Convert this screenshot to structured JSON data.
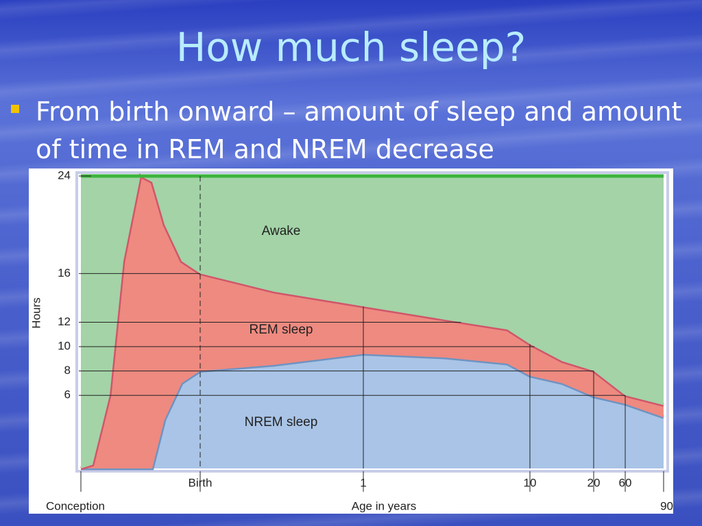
{
  "title": "How much sleep?",
  "bullet": "From birth onward – amount of sleep and amount of time in REM and NREM decrease",
  "chart_data": {
    "type": "area",
    "stacked": true,
    "xlabel": "Age in years",
    "ylabel": "Hours",
    "categories": [
      "Conception",
      null,
      null,
      null,
      null,
      null,
      null,
      null,
      "Birth",
      null,
      "1",
      null,
      null,
      "10",
      null,
      "20",
      "60",
      "90"
    ],
    "series": [
      {
        "name": "NREM sleep",
        "color": "#a9c4e6",
        "edge": "#6f93c2",
        "values": [
          0,
          0,
          0,
          0,
          0,
          0,
          4,
          7,
          8,
          8.5,
          9.4,
          9.1,
          8.6,
          7.6,
          7,
          5.9,
          5.3,
          4.2
        ]
      },
      {
        "name": "REM sleep",
        "color": "#ee8a80",
        "edge": "#d0566a",
        "values": [
          0,
          0.3,
          6,
          17,
          24,
          23.5,
          16,
          10,
          8,
          6,
          3.9,
          3.1,
          2.8,
          2.6,
          1.8,
          2.1,
          0.7,
          1.0
        ]
      },
      {
        "name": "Awake",
        "color": "#a3d3a6",
        "edge": "#3cb43c",
        "values": [
          24,
          23.7,
          18,
          7,
          0,
          0.5,
          4,
          7,
          8,
          9.5,
          10.7,
          11.8,
          12.6,
          13.8,
          15.2,
          16,
          18,
          18.8
        ]
      }
    ],
    "ylim": [
      0,
      24
    ],
    "yticks": [
      6,
      8,
      10,
      12,
      16,
      24
    ]
  }
}
